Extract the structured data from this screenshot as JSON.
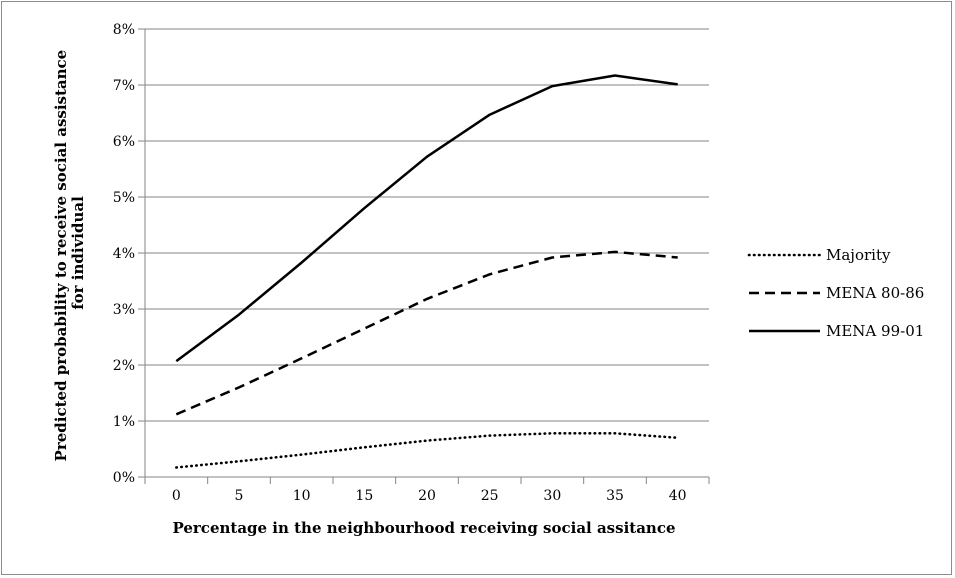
{
  "chart_data": {
    "type": "line",
    "title": "",
    "xlabel": "Percentage in the neighbourhood receiving social assitance",
    "ylabel_line1": "Predicted probability to receive social assistance",
    "ylabel_line2": "for individual",
    "x": [
      0,
      5,
      10,
      15,
      20,
      25,
      30,
      35,
      40
    ],
    "x_tick_labels": [
      "0",
      "5",
      "10",
      "15",
      "20",
      "25",
      "30",
      "35",
      "40"
    ],
    "y_tick_labels": [
      "0%",
      "1%",
      "2%",
      "3%",
      "4%",
      "5%",
      "6%",
      "7%",
      "8%"
    ],
    "ylim": [
      0,
      8
    ],
    "grid": true,
    "legend_position": "right",
    "series": [
      {
        "name": "Majority",
        "style": "dotted",
        "values": [
          0.17,
          0.28,
          0.4,
          0.53,
          0.65,
          0.74,
          0.78,
          0.78,
          0.7
        ]
      },
      {
        "name": "MENA 80-86",
        "style": "dashed",
        "values": [
          1.12,
          1.6,
          2.12,
          2.65,
          3.18,
          3.62,
          3.92,
          4.02,
          3.92
        ]
      },
      {
        "name": "MENA 99-01",
        "style": "solid",
        "values": [
          2.07,
          2.9,
          3.83,
          4.8,
          5.72,
          6.47,
          6.98,
          7.17,
          7.01
        ]
      }
    ]
  }
}
